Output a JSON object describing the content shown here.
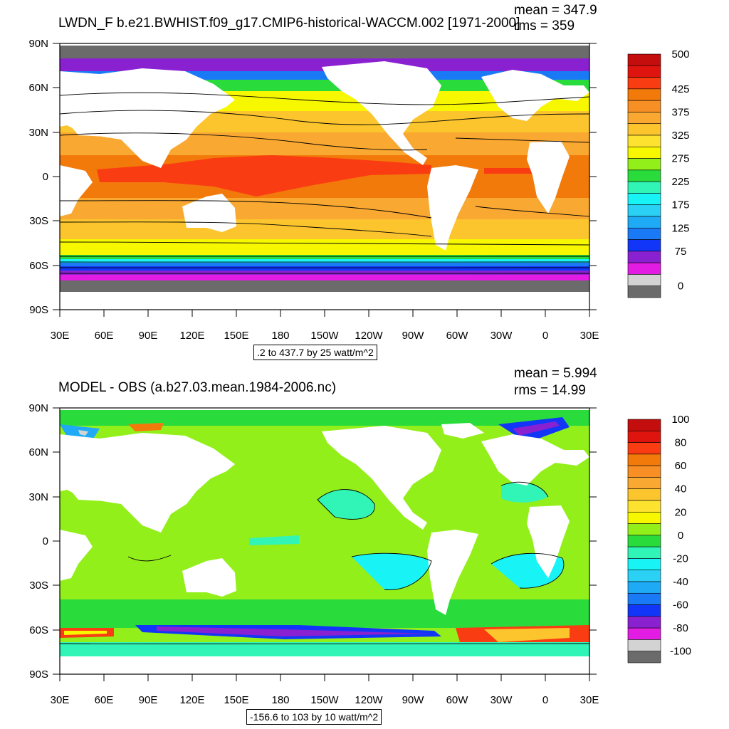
{
  "panels": [
    {
      "title": "LWDN_F b.e21.BWHIST.f09_g17.CMIP6-historical-WACCM.002 [1971-2000]",
      "mean_text": "mean = 347.9",
      "rms_text": "rms = 359",
      "contour_info": ".2 to 437.7 by 25 watt/m^2",
      "lat_ticks": [
        "90N",
        "60N",
        "30N",
        "0",
        "30S",
        "60S",
        "90S"
      ],
      "lon_ticks": [
        "30E",
        "60E",
        "90E",
        "120E",
        "150E",
        "180",
        "150W",
        "120W",
        "90W",
        "60W",
        "30W",
        "0",
        "30E"
      ],
      "colorbar": {
        "colors": [
          "#c40d0d",
          "#e0140f",
          "#fa3c12",
          "#f27a0a",
          "#f78f24",
          "#f9a832",
          "#fcc52e",
          "#fde330",
          "#f7f700",
          "#93ef1a",
          "#2adb3c",
          "#31f5b7",
          "#18f4f6",
          "#2ad1f5",
          "#1eaaf5",
          "#1a7af5",
          "#1236f7",
          "#8a21d1",
          "#e21ce2",
          "#d3d3d3",
          "#6b6b6b"
        ],
        "labels": [
          "500",
          "425",
          "375",
          "325",
          "275",
          "225",
          "175",
          "125",
          "75",
          "0"
        ],
        "label_positions": [
          0,
          3,
          5,
          7,
          9,
          11,
          13,
          15,
          17,
          20
        ]
      }
    },
    {
      "title": "MODEL - OBS (a.b27.03.mean.1984-2006.nc)",
      "mean_text": "mean = 5.994",
      "rms_text": "rms = 14.99",
      "contour_info": "-156.6 to 103 by 10 watt/m^2",
      "lat_ticks": [
        "90N",
        "60N",
        "30N",
        "0",
        "30S",
        "60S",
        "90S"
      ],
      "lon_ticks": [
        "30E",
        "60E",
        "90E",
        "120E",
        "150E",
        "180",
        "150W",
        "120W",
        "90W",
        "60W",
        "30W",
        "0",
        "30E"
      ],
      "colorbar": {
        "colors": [
          "#c40d0d",
          "#e0140f",
          "#fa3c12",
          "#f27a0a",
          "#f78f24",
          "#f9a832",
          "#fcc52e",
          "#fde330",
          "#f7f700",
          "#93ef1a",
          "#2adb3c",
          "#31f5b7",
          "#18f4f6",
          "#2ad1f5",
          "#1eaaf5",
          "#1a7af5",
          "#1236f7",
          "#8a21d1",
          "#e21ce2",
          "#d3d3d3",
          "#6b6b6b"
        ],
        "labels": [
          "100",
          "80",
          "60",
          "40",
          "20",
          "0",
          "-20",
          "-40",
          "-60",
          "-80",
          "-100"
        ],
        "label_positions": [
          0,
          2,
          4,
          6,
          8,
          10,
          12,
          14,
          16,
          18,
          20
        ]
      }
    }
  ]
}
